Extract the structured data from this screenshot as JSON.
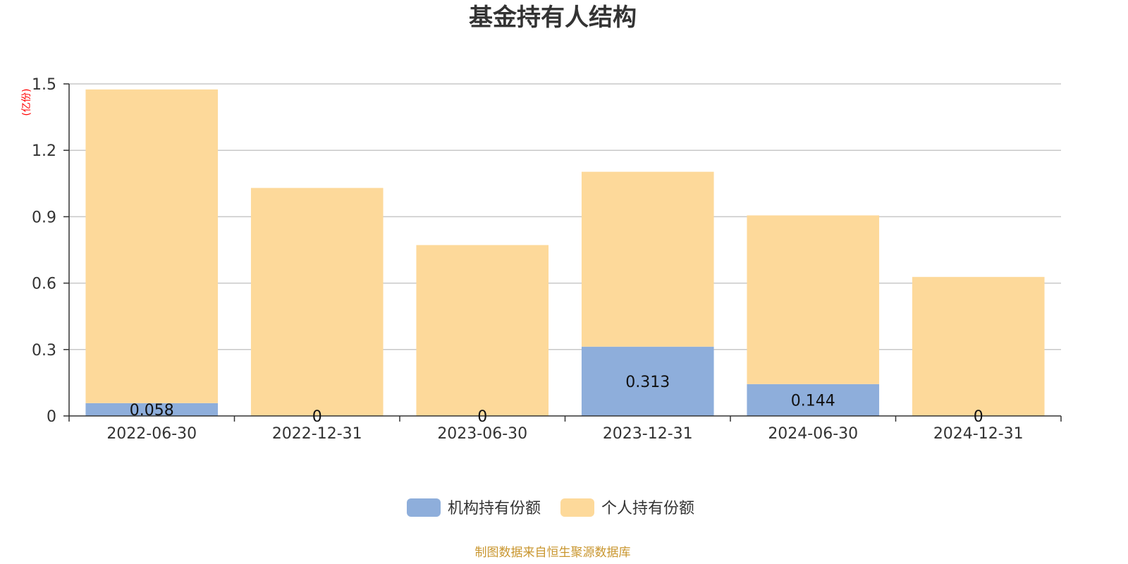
{
  "chart_data": {
    "type": "bar",
    "stacked": true,
    "title": "基金持有人结构",
    "unit_label": "(亿份)",
    "categories": [
      "2022-06-30",
      "2022-12-31",
      "2023-06-30",
      "2023-12-31",
      "2024-06-30",
      "2024-12-31"
    ],
    "series": [
      {
        "name": "机构持有份额",
        "color": "#8eaedb",
        "values": [
          0.058,
          0,
          0,
          0.313,
          0.144,
          0
        ],
        "labels": [
          "0.058",
          "0",
          "0",
          "0.313",
          "0.144",
          "0"
        ]
      },
      {
        "name": "个人持有份额",
        "color": "#fdd99a",
        "values": [
          1.417,
          1.03,
          0.772,
          0.79,
          0.762,
          0.628
        ]
      }
    ],
    "ylim": [
      0,
      1.5
    ],
    "yticks": [
      "0",
      "0.3",
      "0.6",
      "0.9",
      "1.2",
      "1.5"
    ],
    "ytick_values": [
      0,
      0.3,
      0.6,
      0.9,
      1.2,
      1.5
    ],
    "grid": true,
    "legend_position": "bottom-center"
  },
  "source": "制图数据来自恒生聚源数据库"
}
